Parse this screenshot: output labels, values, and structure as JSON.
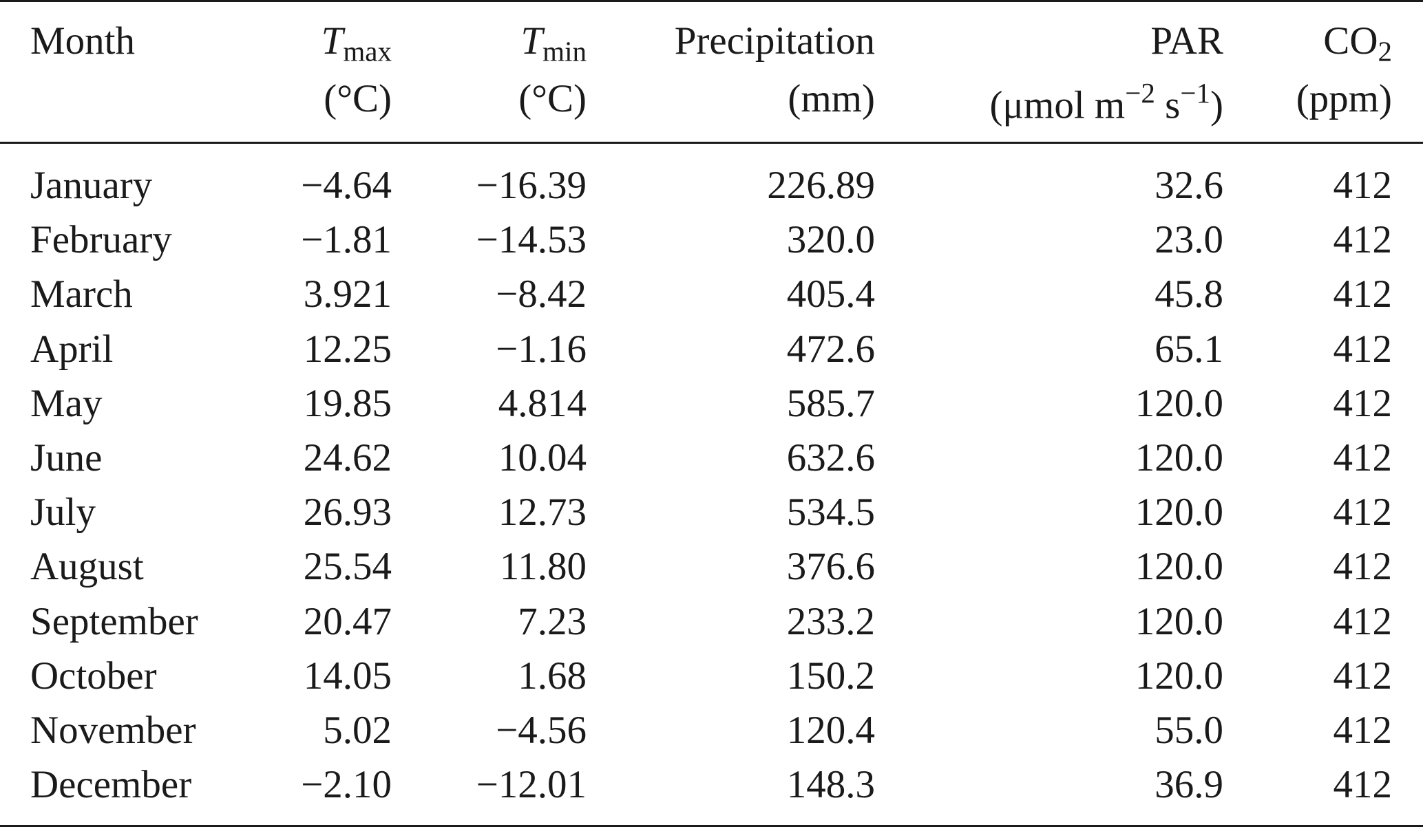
{
  "table": {
    "headers": {
      "month": "Month",
      "tmax_symbol": "T",
      "tmax_sub": "max",
      "tmax_unit": "(°C)",
      "tmin_symbol": "T",
      "tmin_sub": "min",
      "tmin_unit": "(°C)",
      "precip": "Precipitation",
      "precip_unit": "(mm)",
      "par": "PAR",
      "par_unit_a": "(μmol m",
      "par_unit_sup1": "−2",
      "par_unit_b": " s",
      "par_unit_sup2": "−1",
      "par_unit_c": ")",
      "co2": "CO",
      "co2_sub": "2",
      "co2_unit": "(ppm)"
    },
    "rows": [
      {
        "month": "January",
        "tmax": "−4.64",
        "tmin": "−16.39",
        "precip": "226.89",
        "par": "32.6",
        "co2": "412"
      },
      {
        "month": "February",
        "tmax": "−1.81",
        "tmin": "−14.53",
        "precip": "320.0",
        "par": "23.0",
        "co2": "412"
      },
      {
        "month": "March",
        "tmax": "3.921",
        "tmin": "−8.42",
        "precip": "405.4",
        "par": "45.8",
        "co2": "412"
      },
      {
        "month": "April",
        "tmax": "12.25",
        "tmin": "−1.16",
        "precip": "472.6",
        "par": "65.1",
        "co2": "412"
      },
      {
        "month": "May",
        "tmax": "19.85",
        "tmin": "4.814",
        "precip": "585.7",
        "par": "120.0",
        "co2": "412"
      },
      {
        "month": "June",
        "tmax": "24.62",
        "tmin": "10.04",
        "precip": "632.6",
        "par": "120.0",
        "co2": "412"
      },
      {
        "month": "July",
        "tmax": "26.93",
        "tmin": "12.73",
        "precip": "534.5",
        "par": "120.0",
        "co2": "412"
      },
      {
        "month": "August",
        "tmax": "25.54",
        "tmin": "11.80",
        "precip": "376.6",
        "par": "120.0",
        "co2": "412"
      },
      {
        "month": "September",
        "tmax": "20.47",
        "tmin": "7.23",
        "precip": "233.2",
        "par": "120.0",
        "co2": "412"
      },
      {
        "month": "October",
        "tmax": "14.05",
        "tmin": "1.68",
        "precip": "150.2",
        "par": "120.0",
        "co2": "412"
      },
      {
        "month": "November",
        "tmax": "5.02",
        "tmin": "−4.56",
        "precip": "120.4",
        "par": "55.0",
        "co2": "412"
      },
      {
        "month": "December",
        "tmax": "−2.10",
        "tmin": "−12.01",
        "precip": "148.3",
        "par": "36.9",
        "co2": "412"
      }
    ]
  }
}
